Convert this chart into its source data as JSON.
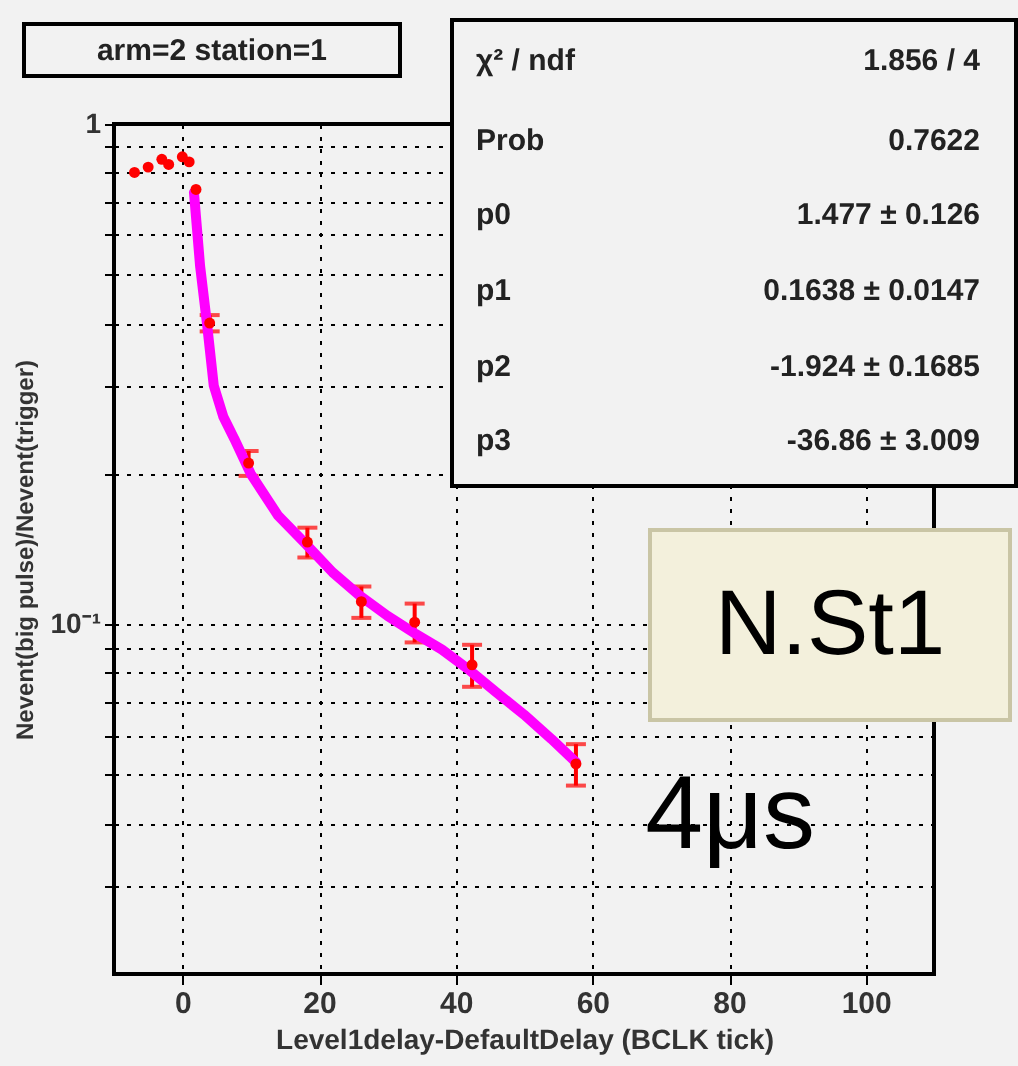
{
  "chart_data": {
    "type": "scatter",
    "title": "arm=2 station=1",
    "xlabel": "Level1delay-DefaultDelay (BCLK tick)",
    "ylabel": "Nevent(big pulse)/Nevent(trigger)",
    "log": "y",
    "grid": true,
    "xlim": [
      -10,
      110
    ],
    "xticks": [
      0,
      20,
      40,
      60,
      80,
      100
    ],
    "ylim": [
      0.02,
      1
    ],
    "yticks": [
      {
        "value": 0.03,
        "label": null
      },
      {
        "value": 0.04,
        "label": null
      },
      {
        "value": 0.05,
        "label": null
      },
      {
        "value": 0.06,
        "label": null
      },
      {
        "value": 0.07,
        "label": null
      },
      {
        "value": 0.08,
        "label": null
      },
      {
        "value": 0.09,
        "label": null
      },
      {
        "value": 0.1,
        "label": "10⁻¹"
      },
      {
        "value": 0.2,
        "label": null
      },
      {
        "value": 0.3,
        "label": null
      },
      {
        "value": 0.4,
        "label": null
      },
      {
        "value": 0.5,
        "label": null
      },
      {
        "value": 0.6,
        "label": null
      },
      {
        "value": 0.7,
        "label": null
      },
      {
        "value": 0.8,
        "label": null
      },
      {
        "value": 0.9,
        "label": null
      },
      1
    ],
    "series": [
      {
        "marker": "circle",
        "color": "#ff0000",
        "x": [
          -7,
          -5,
          -3,
          -2,
          0,
          1,
          2,
          4,
          9.7,
          18.3,
          26.2,
          34,
          42.4,
          57.6
        ],
        "values": [
          0.8,
          0.82,
          0.85,
          0.83,
          0.86,
          0.84,
          0.74,
          0.4,
          0.21,
          0.146,
          0.111,
          0.101,
          0.083,
          0.0526
        ],
        "errors": [
          null,
          null,
          null,
          null,
          null,
          null,
          null,
          0.015,
          0.012,
          0.01,
          0.008,
          0.009,
          0.008,
          0.005
        ]
      },
      {
        "type": "line",
        "marker": "none",
        "color": "#ff00ff",
        "x": [
          1.7,
          2.6,
          3.6,
          4.6,
          6,
          7.6,
          10,
          14,
          18,
          22,
          26,
          30,
          34,
          38,
          42,
          46,
          50,
          54,
          57.6
        ],
        "values": [
          0.73,
          0.52,
          0.4,
          0.3,
          0.26,
          0.235,
          0.2,
          0.165,
          0.145,
          0.127,
          0.114,
          0.104,
          0.096,
          0.089,
          0.081,
          0.073,
          0.066,
          0.059,
          0.053
        ]
      }
    ],
    "annotations": [
      "χ² / ndf",
      "1.856 / 4",
      "Prob",
      "0.7622",
      "p0",
      "1.477 ± 0.126",
      "p1",
      "0.1638 ± 0.0147",
      "p2",
      "-1.924 ± 0.1685",
      "p3",
      "-36.86 ± 3.009",
      "N.St1",
      "4μs"
    ]
  }
}
